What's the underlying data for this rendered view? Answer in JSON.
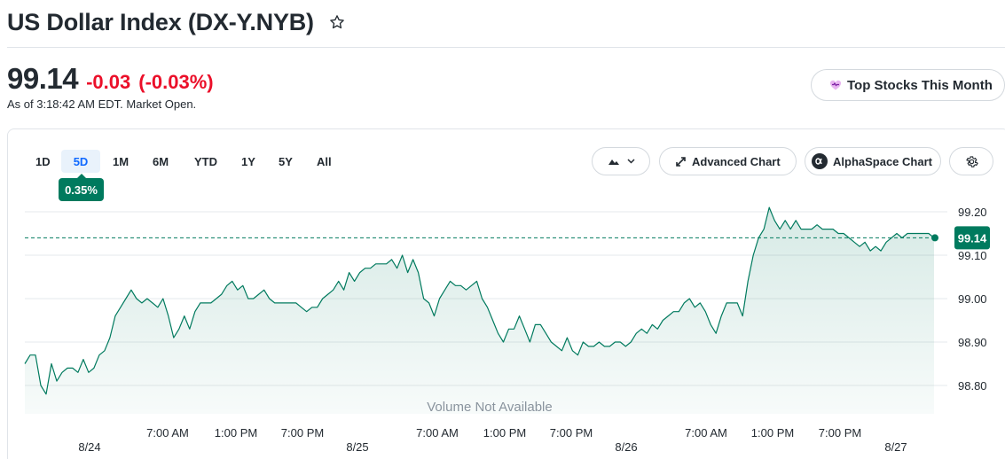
{
  "header": {
    "title": "US Dollar Index (DX-Y.NYB)",
    "price": "99.14",
    "change": "-0.03",
    "change_pct": "(-0.03%)",
    "as_of": "As of 3:18:42 AM EDT. Market Open.",
    "top_stocks_label": "Top Stocks This Month"
  },
  "ranges": [
    "1D",
    "5D",
    "1M",
    "6M",
    "YTD",
    "1Y",
    "5Y",
    "All"
  ],
  "active_range": "5D",
  "range_tooltip": "0.35%",
  "toolbar": {
    "advanced_chart_label": "Advanced Chart",
    "alphaspace_chart_label": "AlphaSpace Chart"
  },
  "icons": {
    "star": "star-icon",
    "top_stocks": "heart-chart-icon",
    "chart_type": "mountain-chart-icon",
    "advanced": "expand-arrows-icon",
    "alphaspace": "alphaspace-logo-icon",
    "settings": "gear-icon"
  },
  "colors": {
    "negative": "#eb0f29",
    "line": "#007a5e",
    "accent": "#0f69ff"
  },
  "chart_data": {
    "type": "area",
    "y_ticks": [
      "99.20",
      "99.10",
      "99.00",
      "98.90",
      "98.80"
    ],
    "ylim": [
      98.77,
      99.235
    ],
    "last_price_label": "99.14",
    "last_price": 99.14,
    "volume_label": "Volume Not Available",
    "x_time_labels": [
      "7:00 AM",
      "1:00 PM",
      "7:00 PM",
      "7:00 AM",
      "1:00 PM",
      "7:00 PM",
      "7:00 AM",
      "1:00 PM",
      "7:00 PM"
    ],
    "x_date_labels": [
      "8/24",
      "8/25",
      "8/26",
      "8/27"
    ],
    "series": [
      {
        "values": [
          98.85,
          98.87,
          98.87,
          98.8,
          98.78,
          98.85,
          98.81,
          98.83,
          98.84,
          98.84,
          98.83,
          98.86,
          98.83,
          98.84,
          98.87,
          98.88,
          98.91,
          98.96,
          98.98,
          99.0,
          99.02,
          99.0,
          98.99,
          99.0,
          98.99,
          98.98,
          99.0,
          98.96,
          98.91,
          98.93,
          98.96,
          98.93,
          98.97,
          98.99,
          98.99,
          98.99,
          99.0,
          99.01,
          99.03,
          99.04,
          99.02,
          99.03,
          99.0,
          99.0,
          99.01,
          99.02,
          99.0,
          98.99,
          98.99,
          98.99,
          98.99,
          98.99,
          98.98,
          98.97,
          98.98,
          98.98,
          99.0,
          99.01,
          99.02,
          99.04,
          99.02,
          99.06,
          99.04,
          99.06,
          99.07,
          99.07,
          99.08,
          99.08,
          99.08,
          99.09,
          99.07,
          99.1,
          99.06,
          99.09,
          99.06,
          99.0,
          98.99,
          98.96,
          99.0,
          99.02,
          99.04,
          99.03,
          99.03,
          99.02,
          99.03,
          99.04,
          99.0,
          98.98,
          98.95,
          98.92,
          98.9,
          98.93,
          98.93,
          98.96,
          98.93,
          98.9,
          98.94,
          98.94,
          98.92,
          98.9,
          98.89,
          98.88,
          98.91,
          98.88,
          98.87,
          98.9,
          98.89,
          98.89,
          98.9,
          98.89,
          98.89,
          98.9,
          98.9,
          98.89,
          98.9,
          98.92,
          98.93,
          98.92,
          98.94,
          98.93,
          98.95,
          98.96,
          98.97,
          98.97,
          98.99,
          99.0,
          98.98,
          98.99,
          98.97,
          98.94,
          98.92,
          98.96,
          98.99,
          98.99,
          98.99,
          98.96,
          99.04,
          99.1,
          99.14,
          99.16,
          99.21,
          99.18,
          99.16,
          99.18,
          99.16,
          99.18,
          99.16,
          99.16,
          99.16,
          99.17,
          99.16,
          99.16,
          99.16,
          99.15,
          99.15,
          99.14,
          99.13,
          99.12,
          99.13,
          99.11,
          99.12,
          99.11,
          99.13,
          99.14,
          99.15,
          99.14,
          99.15,
          99.15,
          99.15,
          99.15,
          99.15,
          99.14
        ]
      }
    ]
  }
}
